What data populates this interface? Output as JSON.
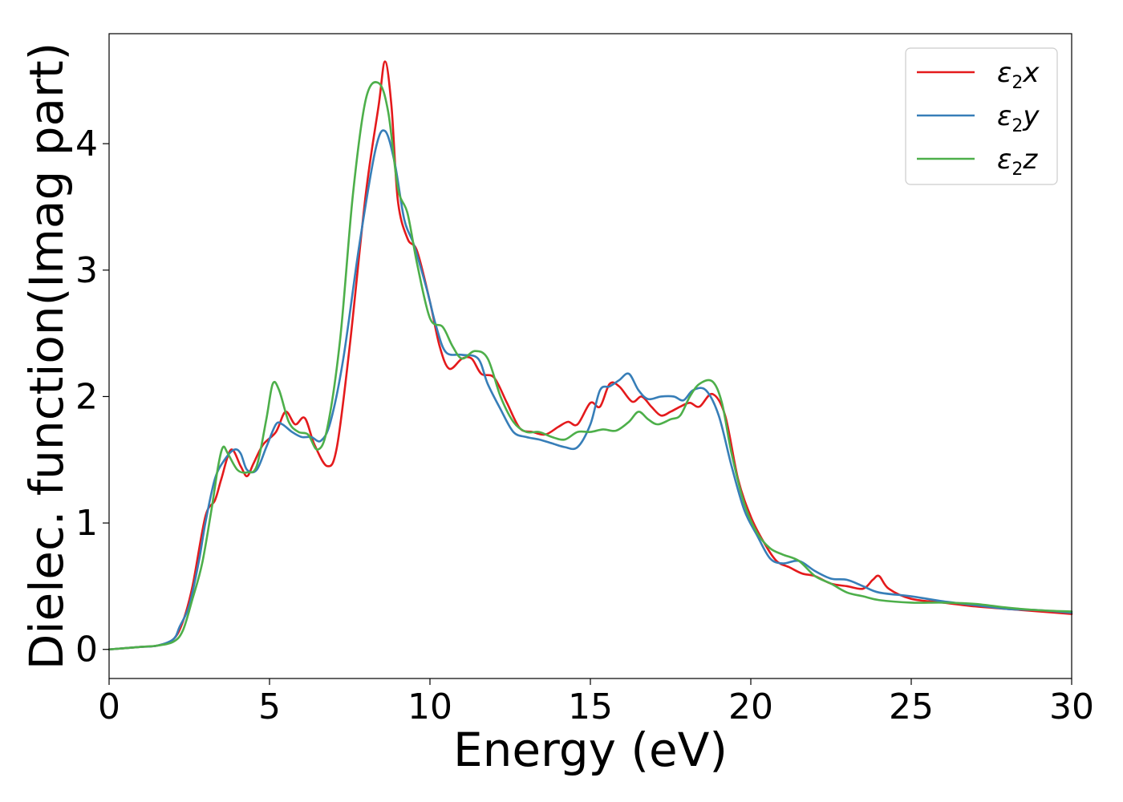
{
  "chart_data": {
    "type": "line",
    "title": "",
    "xlabel": "Energy (eV)",
    "ylabel": "Dielec. function(Imag part)",
    "xlim": [
      0,
      30
    ],
    "ylim": [
      -0.23,
      4.87
    ],
    "xticks": [
      0,
      5,
      10,
      15,
      20,
      25,
      30
    ],
    "yticks": [
      0,
      1,
      2,
      3,
      4
    ],
    "grid": false,
    "legend_position": "top-right",
    "series": [
      {
        "name": "ε2x",
        "legend_symbol": "ε",
        "legend_sub": "2",
        "legend_var": "x",
        "color": "#e41a1c",
        "points": [
          [
            0,
            0
          ],
          [
            1,
            0.02
          ],
          [
            1.5,
            0.03
          ],
          [
            2,
            0.08
          ],
          [
            2.3,
            0.22
          ],
          [
            2.6,
            0.5
          ],
          [
            3,
            1.05
          ],
          [
            3.3,
            1.18
          ],
          [
            3.5,
            1.35
          ],
          [
            3.8,
            1.58
          ],
          [
            4.1,
            1.45
          ],
          [
            4.3,
            1.37
          ],
          [
            4.5,
            1.47
          ],
          [
            4.8,
            1.62
          ],
          [
            5.2,
            1.72
          ],
          [
            5.5,
            1.88
          ],
          [
            5.8,
            1.78
          ],
          [
            6.1,
            1.83
          ],
          [
            6.4,
            1.62
          ],
          [
            6.8,
            1.45
          ],
          [
            7.1,
            1.6
          ],
          [
            7.5,
            2.4
          ],
          [
            8,
            3.6
          ],
          [
            8.4,
            4.3
          ],
          [
            8.6,
            4.65
          ],
          [
            8.8,
            4.3
          ],
          [
            9,
            3.55
          ],
          [
            9.3,
            3.25
          ],
          [
            9.6,
            3.15
          ],
          [
            10,
            2.75
          ],
          [
            10.3,
            2.4
          ],
          [
            10.6,
            2.22
          ],
          [
            11,
            2.3
          ],
          [
            11.3,
            2.3
          ],
          [
            11.6,
            2.18
          ],
          [
            12,
            2.15
          ],
          [
            12.4,
            1.95
          ],
          [
            12.8,
            1.75
          ],
          [
            13.2,
            1.72
          ],
          [
            13.6,
            1.7
          ],
          [
            14,
            1.76
          ],
          [
            14.3,
            1.8
          ],
          [
            14.6,
            1.78
          ],
          [
            15,
            1.95
          ],
          [
            15.3,
            1.92
          ],
          [
            15.6,
            2.1
          ],
          [
            15.9,
            2.08
          ],
          [
            16.3,
            1.96
          ],
          [
            16.6,
            2
          ],
          [
            16.9,
            1.92
          ],
          [
            17.2,
            1.85
          ],
          [
            17.5,
            1.88
          ],
          [
            17.8,
            1.92
          ],
          [
            18.1,
            1.95
          ],
          [
            18.4,
            1.92
          ],
          [
            18.8,
            2.02
          ],
          [
            19.2,
            1.85
          ],
          [
            19.6,
            1.35
          ],
          [
            20,
            1.05
          ],
          [
            20.4,
            0.85
          ],
          [
            20.8,
            0.7
          ],
          [
            21.2,
            0.65
          ],
          [
            21.6,
            0.6
          ],
          [
            22,
            0.58
          ],
          [
            22.5,
            0.52
          ],
          [
            23,
            0.5
          ],
          [
            23.5,
            0.48
          ],
          [
            23.8,
            0.55
          ],
          [
            24,
            0.58
          ],
          [
            24.3,
            0.48
          ],
          [
            25,
            0.4
          ],
          [
            26,
            0.37
          ],
          [
            27,
            0.34
          ],
          [
            28,
            0.32
          ],
          [
            29,
            0.3
          ],
          [
            30,
            0.28
          ]
        ]
      },
      {
        "name": "ε2y",
        "legend_symbol": "ε",
        "legend_sub": "2",
        "legend_var": "y",
        "color": "#377eb8",
        "points": [
          [
            0,
            0
          ],
          [
            1,
            0.02
          ],
          [
            1.5,
            0.03
          ],
          [
            2,
            0.08
          ],
          [
            2.2,
            0.18
          ],
          [
            2.5,
            0.35
          ],
          [
            2.8,
            0.7
          ],
          [
            3,
            1
          ],
          [
            3.3,
            1.35
          ],
          [
            3.6,
            1.5
          ],
          [
            3.9,
            1.58
          ],
          [
            4.1,
            1.55
          ],
          [
            4.3,
            1.42
          ],
          [
            4.6,
            1.42
          ],
          [
            4.9,
            1.6
          ],
          [
            5.2,
            1.78
          ],
          [
            5.4,
            1.78
          ],
          [
            5.7,
            1.72
          ],
          [
            6,
            1.68
          ],
          [
            6.3,
            1.68
          ],
          [
            6.6,
            1.65
          ],
          [
            6.9,
            1.8
          ],
          [
            7.3,
            2.3
          ],
          [
            7.8,
            3.2
          ],
          [
            8.3,
            3.95
          ],
          [
            8.6,
            4.1
          ],
          [
            8.9,
            3.85
          ],
          [
            9.2,
            3.4
          ],
          [
            9.5,
            3.2
          ],
          [
            9.9,
            2.85
          ],
          [
            10.2,
            2.55
          ],
          [
            10.5,
            2.35
          ],
          [
            11,
            2.33
          ],
          [
            11.5,
            2.3
          ],
          [
            11.8,
            2.1
          ],
          [
            12.2,
            1.9
          ],
          [
            12.6,
            1.72
          ],
          [
            13,
            1.68
          ],
          [
            13.4,
            1.66
          ],
          [
            13.8,
            1.63
          ],
          [
            14.2,
            1.6
          ],
          [
            14.6,
            1.6
          ],
          [
            15,
            1.78
          ],
          [
            15.3,
            2.05
          ],
          [
            15.6,
            2.08
          ],
          [
            15.9,
            2.13
          ],
          [
            16.2,
            2.18
          ],
          [
            16.5,
            2.05
          ],
          [
            16.8,
            1.98
          ],
          [
            17.2,
            2
          ],
          [
            17.6,
            2
          ],
          [
            17.9,
            1.97
          ],
          [
            18.2,
            2.05
          ],
          [
            18.6,
            2.05
          ],
          [
            19,
            1.85
          ],
          [
            19.4,
            1.45
          ],
          [
            19.8,
            1.1
          ],
          [
            20.2,
            0.9
          ],
          [
            20.6,
            0.72
          ],
          [
            21,
            0.68
          ],
          [
            21.5,
            0.7
          ],
          [
            22,
            0.62
          ],
          [
            22.5,
            0.56
          ],
          [
            23,
            0.55
          ],
          [
            23.5,
            0.5
          ],
          [
            24,
            0.45
          ],
          [
            25,
            0.42
          ],
          [
            26,
            0.38
          ],
          [
            27,
            0.35
          ],
          [
            28,
            0.32
          ],
          [
            29,
            0.31
          ],
          [
            30,
            0.29
          ]
        ]
      },
      {
        "name": "ε2z",
        "legend_symbol": "ε",
        "legend_sub": "2",
        "legend_var": "z",
        "color": "#4daf4a",
        "points": [
          [
            0,
            0
          ],
          [
            1,
            0.02
          ],
          [
            1.5,
            0.03
          ],
          [
            2,
            0.06
          ],
          [
            2.3,
            0.15
          ],
          [
            2.6,
            0.4
          ],
          [
            2.9,
            0.68
          ],
          [
            3.2,
            1.12
          ],
          [
            3.4,
            1.45
          ],
          [
            3.55,
            1.6
          ],
          [
            3.7,
            1.55
          ],
          [
            4,
            1.42
          ],
          [
            4.3,
            1.4
          ],
          [
            4.6,
            1.45
          ],
          [
            4.9,
            1.82
          ],
          [
            5.1,
            2.1
          ],
          [
            5.3,
            2.05
          ],
          [
            5.6,
            1.8
          ],
          [
            5.9,
            1.72
          ],
          [
            6.2,
            1.7
          ],
          [
            6.5,
            1.58
          ],
          [
            6.8,
            1.75
          ],
          [
            7.2,
            2.45
          ],
          [
            7.6,
            3.6
          ],
          [
            8,
            4.35
          ],
          [
            8.4,
            4.48
          ],
          [
            8.7,
            4.25
          ],
          [
            9,
            3.65
          ],
          [
            9.3,
            3.45
          ],
          [
            9.6,
            3.05
          ],
          [
            10,
            2.62
          ],
          [
            10.4,
            2.55
          ],
          [
            10.7,
            2.4
          ],
          [
            11,
            2.3
          ],
          [
            11.4,
            2.36
          ],
          [
            11.8,
            2.3
          ],
          [
            12.2,
            2
          ],
          [
            12.6,
            1.8
          ],
          [
            13,
            1.72
          ],
          [
            13.4,
            1.72
          ],
          [
            13.8,
            1.68
          ],
          [
            14.2,
            1.66
          ],
          [
            14.6,
            1.72
          ],
          [
            15,
            1.72
          ],
          [
            15.4,
            1.74
          ],
          [
            15.8,
            1.73
          ],
          [
            16.2,
            1.8
          ],
          [
            16.5,
            1.88
          ],
          [
            16.8,
            1.82
          ],
          [
            17.1,
            1.78
          ],
          [
            17.5,
            1.82
          ],
          [
            17.8,
            1.85
          ],
          [
            18.1,
            2
          ],
          [
            18.4,
            2.1
          ],
          [
            18.8,
            2.12
          ],
          [
            19.1,
            1.95
          ],
          [
            19.4,
            1.55
          ],
          [
            19.8,
            1.15
          ],
          [
            20.2,
            0.92
          ],
          [
            20.6,
            0.8
          ],
          [
            21,
            0.75
          ],
          [
            21.5,
            0.7
          ],
          [
            22,
            0.58
          ],
          [
            22.5,
            0.52
          ],
          [
            23,
            0.45
          ],
          [
            23.5,
            0.42
          ],
          [
            24,
            0.39
          ],
          [
            25,
            0.37
          ],
          [
            26,
            0.37
          ],
          [
            27,
            0.36
          ],
          [
            28,
            0.33
          ],
          [
            29,
            0.31
          ],
          [
            30,
            0.3
          ]
        ]
      }
    ]
  }
}
